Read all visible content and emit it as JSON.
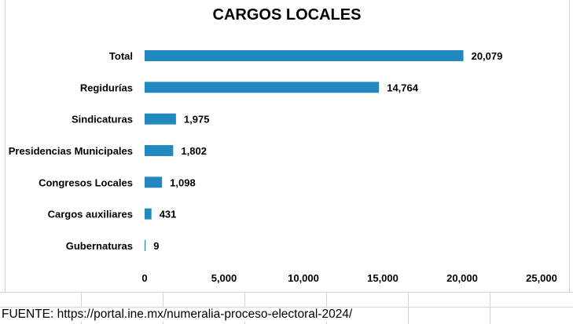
{
  "colors": {
    "bar": "#2289C0",
    "text": "#000000",
    "background": "#ffffff"
  },
  "chart_data": {
    "type": "bar",
    "orientation": "horizontal",
    "title": "CARGOS LOCALES",
    "categories": [
      "Total",
      "Regidurías",
      "Sindicaturas",
      "Presidencias Municipales",
      "Congresos Locales",
      "Cargos auxiliares",
      "Gubernaturas"
    ],
    "values": [
      20079,
      14764,
      1975,
      1802,
      1098,
      431,
      9
    ],
    "value_labels": [
      "20,079",
      "14,764",
      "1,975",
      "1,802",
      "1,098",
      "431",
      "9"
    ],
    "xlim": [
      0,
      25000
    ],
    "xticks": [
      0,
      5000,
      10000,
      15000,
      20000,
      25000
    ],
    "xtick_labels": [
      "0",
      "5,000",
      "10,000",
      "15,000",
      "20,000",
      "25,000"
    ],
    "grid": false,
    "legend": "none"
  },
  "footer": {
    "source": "FUENTE: https://portal.ine.mx/numeralia-proceso-electoral-2024/"
  }
}
